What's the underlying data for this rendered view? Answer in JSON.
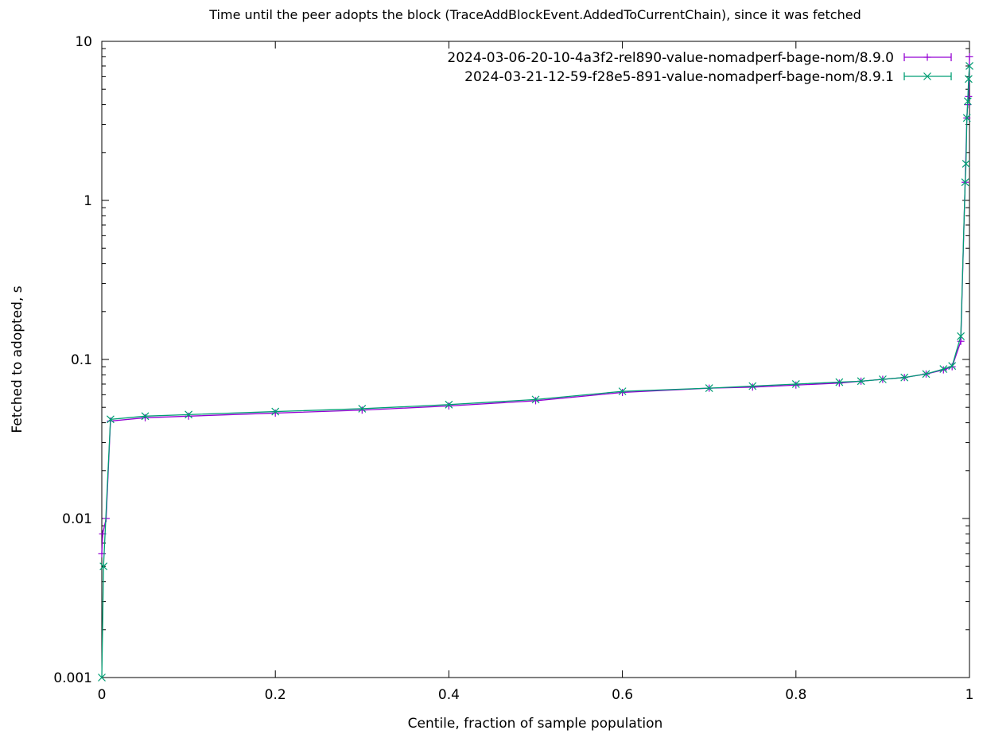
{
  "chart_data": {
    "type": "line",
    "title": "Time until the peer adopts the block (TraceAddBlockEvent.AddedToCurrentChain), since it was fetched",
    "xlabel": "Centile, fraction of sample population",
    "ylabel": "Fetched to adopted, s",
    "xlim": [
      0,
      1
    ],
    "ylim": [
      0.001,
      10
    ],
    "yscale": "log",
    "grid": false,
    "legend_position": "top-right",
    "x_ticks": [
      0,
      0.2,
      0.4,
      0.6,
      0.8,
      1
    ],
    "x_tick_labels": [
      "0",
      "0.2",
      "0.4",
      "0.6",
      "0.8",
      "1"
    ],
    "y_ticks": [
      0.001,
      0.01,
      0.1,
      1,
      10
    ],
    "y_tick_labels": [
      "0.001",
      "0.01",
      "0.1",
      "1",
      "10"
    ],
    "series": [
      {
        "name": "2024-03-06-20-10-4a3f2-rel890-value-nomadperf-bage-nom/8.9.0",
        "color": "#9400d3",
        "marker": "plus",
        "points": [
          [
            0.0,
            0.006
          ],
          [
            0.001,
            0.008
          ],
          [
            0.005,
            0.01
          ],
          [
            0.01,
            0.041
          ],
          [
            0.05,
            0.043
          ],
          [
            0.1,
            0.044
          ],
          [
            0.2,
            0.046
          ],
          [
            0.3,
            0.048
          ],
          [
            0.4,
            0.051
          ],
          [
            0.5,
            0.055
          ],
          [
            0.6,
            0.062
          ],
          [
            0.7,
            0.066
          ],
          [
            0.75,
            0.067
          ],
          [
            0.8,
            0.069
          ],
          [
            0.85,
            0.071
          ],
          [
            0.875,
            0.073
          ],
          [
            0.9,
            0.075
          ],
          [
            0.925,
            0.077
          ],
          [
            0.95,
            0.081
          ],
          [
            0.97,
            0.086
          ],
          [
            0.98,
            0.09
          ],
          [
            0.99,
            0.13
          ],
          [
            0.995,
            1.3
          ],
          [
            0.997,
            3.3
          ],
          [
            0.998,
            4.0
          ],
          [
            0.999,
            4.5
          ],
          [
            1.0,
            8.0
          ]
        ]
      },
      {
        "name": "2024-03-21-12-59-f28e5-891-value-nomadperf-bage-nom/8.9.1",
        "color": "#009e73",
        "marker": "cross",
        "points": [
          [
            0.0,
            0.001
          ],
          [
            0.002,
            0.005
          ],
          [
            0.01,
            0.042
          ],
          [
            0.05,
            0.044
          ],
          [
            0.1,
            0.045
          ],
          [
            0.2,
            0.047
          ],
          [
            0.3,
            0.049
          ],
          [
            0.4,
            0.052
          ],
          [
            0.5,
            0.056
          ],
          [
            0.6,
            0.063
          ],
          [
            0.7,
            0.066
          ],
          [
            0.75,
            0.068
          ],
          [
            0.8,
            0.07
          ],
          [
            0.85,
            0.072
          ],
          [
            0.875,
            0.073
          ],
          [
            0.9,
            0.075
          ],
          [
            0.925,
            0.077
          ],
          [
            0.95,
            0.081
          ],
          [
            0.97,
            0.087
          ],
          [
            0.98,
            0.091
          ],
          [
            0.99,
            0.14
          ],
          [
            0.995,
            1.3
          ],
          [
            0.996,
            1.7
          ],
          [
            0.997,
            3.3
          ],
          [
            0.998,
            4.2
          ],
          [
            0.999,
            5.8
          ],
          [
            1.0,
            7.0
          ]
        ]
      }
    ]
  }
}
